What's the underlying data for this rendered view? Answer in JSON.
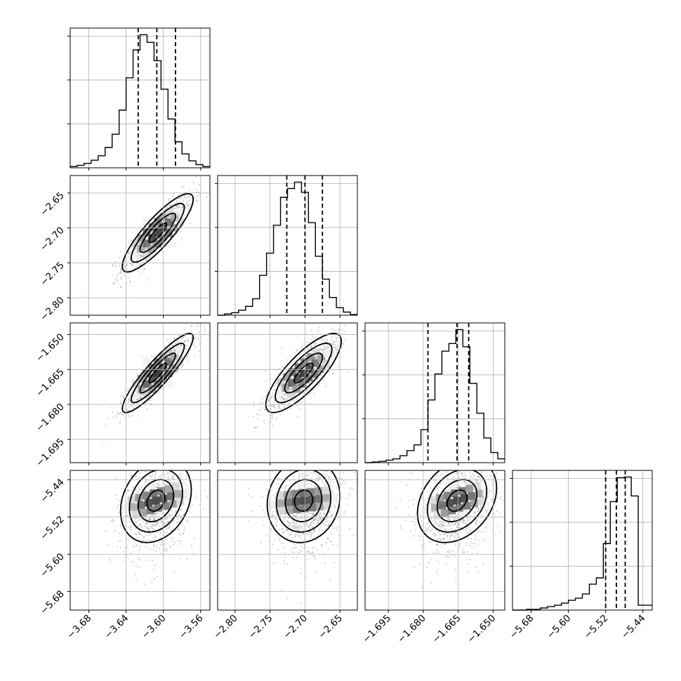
{
  "chart_data": {
    "type": "corner",
    "parameters": [
      "",
      "",
      "",
      ""
    ],
    "ranges": [
      [
        -3.7,
        -3.55
      ],
      [
        -2.825,
        -2.625
      ],
      [
        -1.705,
        -1.645
      ],
      [
        -5.72,
        -5.42
      ]
    ],
    "ticks": [
      [
        -3.68,
        -3.64,
        -3.6,
        -3.56
      ],
      [
        -2.8,
        -2.75,
        -2.7,
        -2.65
      ],
      [
        -1.695,
        -1.68,
        -1.665,
        -1.65
      ],
      [
        -5.68,
        -5.6,
        -5.52,
        -5.44
      ]
    ],
    "tick_labels": [
      [
        "−3.68",
        "−3.64",
        "−3.60",
        "−3.56"
      ],
      [
        "−2.80",
        "−2.75",
        "−2.70",
        "−2.65"
      ],
      [
        "−1.695",
        "−1.680",
        "−1.665",
        "−1.650"
      ],
      [
        "−5.68",
        "−5.60",
        "−5.52",
        "−5.44"
      ]
    ],
    "quantiles": [
      [
        -3.627,
        -3.607,
        -3.587
      ],
      [
        -2.726,
        -2.7,
        -2.675
      ],
      [
        -1.678,
        -1.6655,
        -1.6605
      ],
      [
        -5.52,
        -5.497,
        -5.478
      ]
    ],
    "histograms": [
      {
        "bin_edges": [
          -3.7,
          -3.6925,
          -3.685,
          -3.6775,
          -3.67,
          -3.6625,
          -3.655,
          -3.6475,
          -3.64,
          -3.6325,
          -3.625,
          -3.6175,
          -3.61,
          -3.6025,
          -3.595,
          -3.5875,
          -3.58,
          -3.5725,
          -3.565,
          -3.5575,
          -3.55
        ],
        "counts": [
          2,
          4,
          7,
          12,
          19,
          32,
          53,
          91,
          142,
          186,
          210,
          198,
          169,
          124,
          77,
          41,
          22,
          11,
          5,
          2
        ]
      },
      {
        "bin_edges": [
          -2.825,
          -2.815,
          -2.805,
          -2.795,
          -2.785,
          -2.775,
          -2.765,
          -2.755,
          -2.745,
          -2.735,
          -2.725,
          -2.715,
          -2.705,
          -2.695,
          -2.685,
          -2.675,
          -2.665,
          -2.655,
          -2.645,
          -2.635,
          -2.625
        ],
        "counts": [
          0,
          2,
          4,
          8,
          14,
          26,
          63,
          98,
          142,
          186,
          200,
          210,
          194,
          146,
          93,
          57,
          28,
          12,
          5,
          1
        ]
      },
      {
        "bin_edges": [
          -1.705,
          -1.702,
          -1.699,
          -1.696,
          -1.693,
          -1.69,
          -1.687,
          -1.684,
          -1.681,
          -1.678,
          -1.675,
          -1.672,
          -1.669,
          -1.666,
          -1.663,
          -1.66,
          -1.657,
          -1.654,
          -1.651,
          -1.648,
          -1.645
        ],
        "counts": [
          0,
          1,
          2,
          4,
          6,
          11,
          19,
          28,
          52,
          99,
          140,
          176,
          188,
          210,
          183,
          125,
          78,
          39,
          16,
          6
        ]
      },
      {
        "bin_edges": [
          -5.72,
          -5.705,
          -5.69,
          -5.675,
          -5.66,
          -5.645,
          -5.63,
          -5.615,
          -5.6,
          -5.585,
          -5.57,
          -5.555,
          -5.54,
          -5.525,
          -5.51,
          -5.495,
          -5.48,
          -5.465,
          -5.45,
          -5.435,
          -5.42
        ],
        "counts": [
          0,
          0,
          1,
          1,
          3,
          5,
          7,
          10,
          14,
          17,
          23,
          37,
          46,
          95,
          155,
          189,
          190,
          163,
          7,
          7
        ]
      }
    ],
    "pairs": [
      {
        "i": 1,
        "j": 0,
        "center": [
          -3.606,
          -2.707
        ],
        "std": [
          0.019,
          0.028
        ],
        "corr": 0.86
      },
      {
        "i": 2,
        "j": 0,
        "center": [
          -3.606,
          -1.6665
        ],
        "std": [
          0.019,
          0.0085
        ],
        "corr": 0.9
      },
      {
        "i": 2,
        "j": 1,
        "center": [
          -2.702,
          -1.6665
        ],
        "std": [
          0.027,
          0.0085
        ],
        "corr": 0.8
      },
      {
        "i": 3,
        "j": 0,
        "center": [
          -3.608,
          -5.485
        ],
        "std": [
          0.019,
          0.045
        ],
        "corr": 0.25
      },
      {
        "i": 3,
        "j": 1,
        "center": [
          -2.702,
          -5.485
        ],
        "std": [
          0.026,
          0.045
        ],
        "corr": 0.1
      },
      {
        "i": 3,
        "j": 2,
        "center": [
          -1.6655,
          -5.485
        ],
        "std": [
          0.0085,
          0.045
        ],
        "corr": 0.3
      }
    ]
  }
}
